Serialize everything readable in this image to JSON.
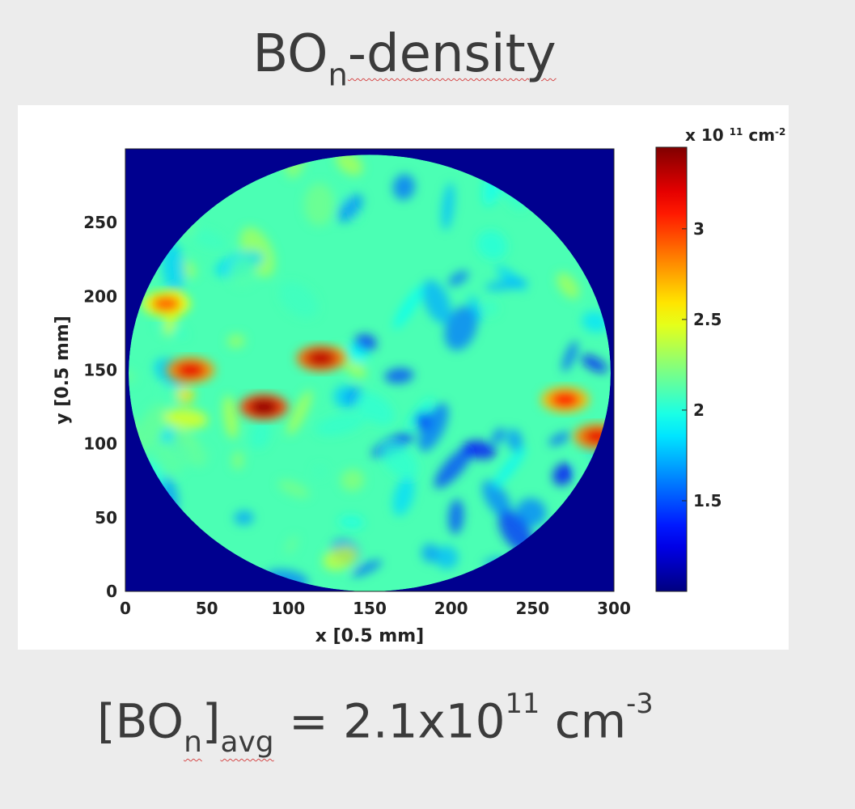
{
  "title": {
    "main": "BO",
    "sub": "n",
    "rest": "-density"
  },
  "formula": {
    "open": "[BO",
    "sub_n": "n",
    "close": "]",
    "sub_avg": "avg",
    "eq": " = 2.1x10",
    "exp": "11",
    "unit": " cm",
    "unit_exp": "-3"
  },
  "chart_data": {
    "type": "heatmap",
    "xlabel": "x [0.5 mm]",
    "ylabel": "y [0.5 mm]",
    "xlim": [
      0,
      300
    ],
    "ylim": [
      0,
      300
    ],
    "x_ticks": [
      0,
      50,
      100,
      150,
      200,
      250,
      300
    ],
    "y_ticks": [
      0,
      50,
      100,
      150,
      200,
      250
    ],
    "colorbar": {
      "label": "x 10",
      "label_exp": "11",
      "unit": "cm",
      "unit_exp": "-2",
      "range": [
        1.0,
        3.45
      ],
      "ticks": [
        1.5,
        2,
        2.5,
        3
      ]
    },
    "colormap": "jet",
    "background_color": "#00008f",
    "description_values": {
      "average": 2.1,
      "hotspots": [
        {
          "x": 85,
          "y": 125,
          "value": 3.4
        },
        {
          "x": 40,
          "y": 150,
          "value": 3.2
        },
        {
          "x": 120,
          "y": 158,
          "value": 3.3
        },
        {
          "x": 270,
          "y": 130,
          "value": 3.1
        },
        {
          "x": 290,
          "y": 105,
          "value": 3.2
        },
        {
          "x": 25,
          "y": 195,
          "value": 2.9
        }
      ]
    }
  }
}
